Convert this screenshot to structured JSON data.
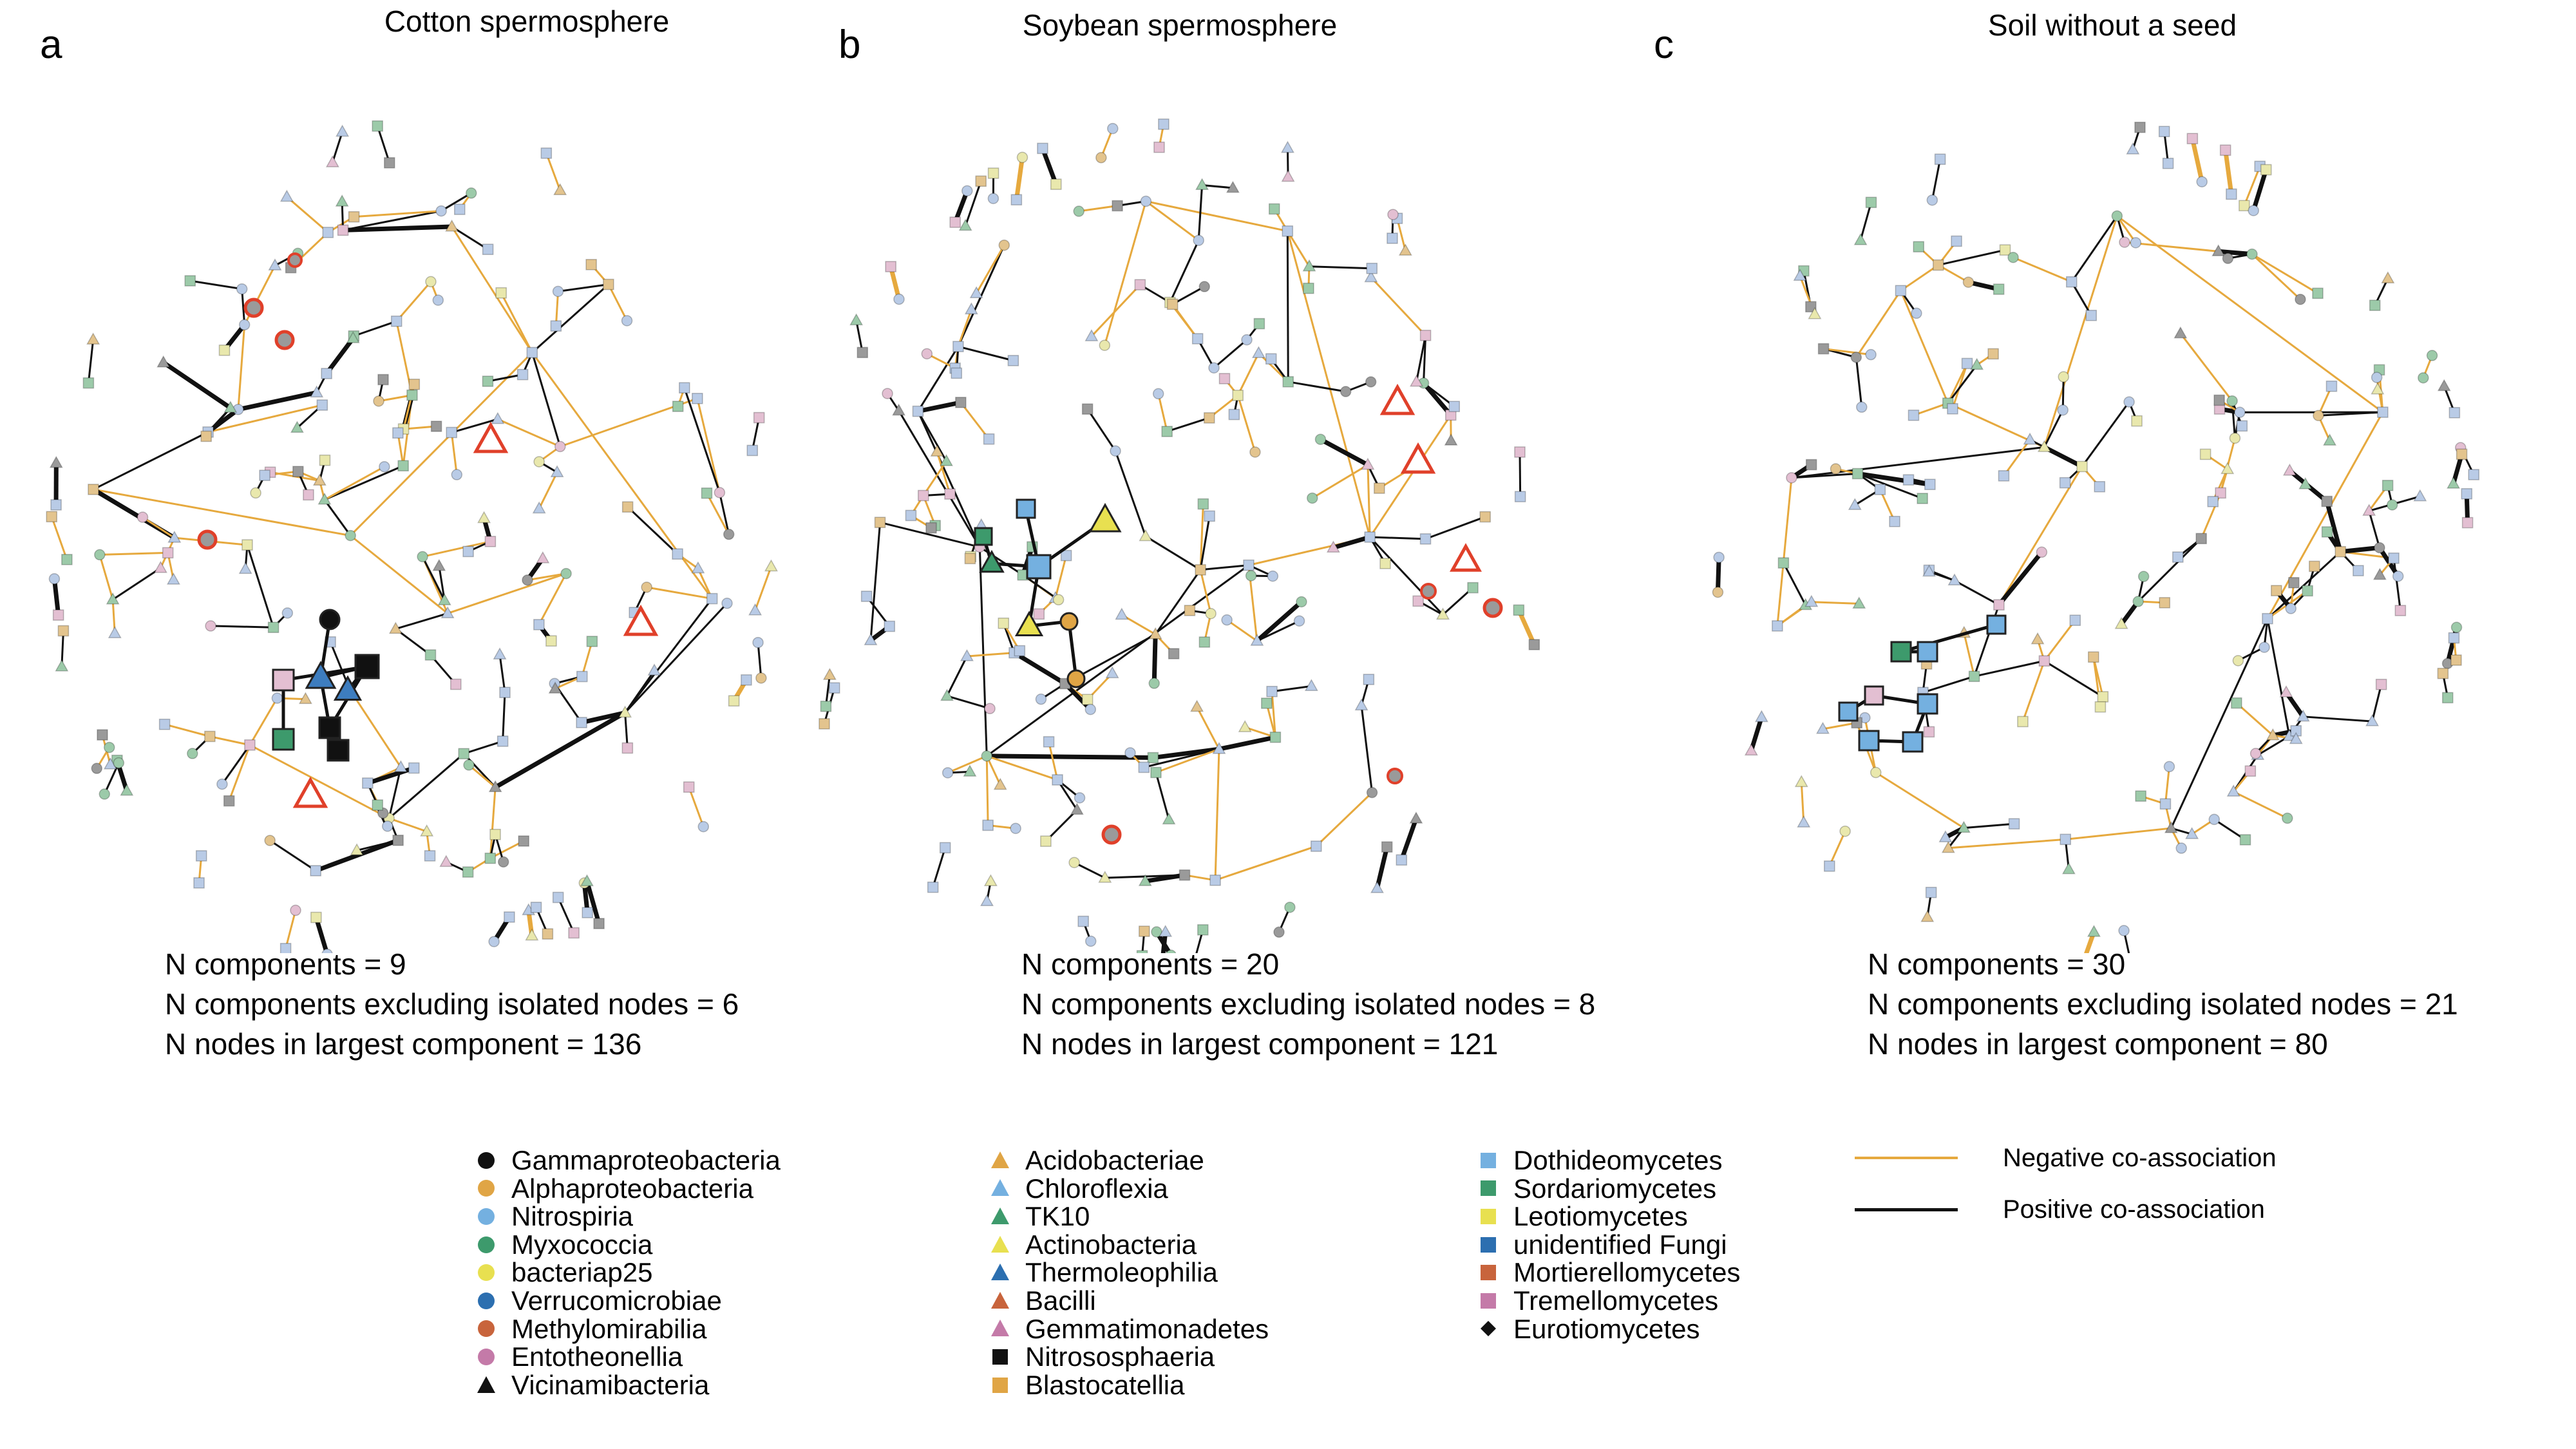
{
  "panels": [
    {
      "letter": "a",
      "title": "Cotton spermosphere",
      "stats": [
        "N components = 9",
        "N components excluding isolated nodes = 6",
        "N nodes in largest component = 136"
      ]
    },
    {
      "letter": "b",
      "title": "Soybean spermosphere",
      "stats": [
        "N components = 20",
        "N components excluding isolated nodes = 8",
        "N nodes in largest component = 121"
      ]
    },
    {
      "letter": "c",
      "title": "Soil without a seed",
      "stats": [
        "N components = 30",
        "N components excluding isolated nodes = 21",
        "N nodes in largest component = 80"
      ]
    }
  ],
  "legend": {
    "column1": [
      {
        "label": "Gammaproteobacteria",
        "shape": "circle",
        "color": "#111111"
      },
      {
        "label": "Alphaproteobacteria",
        "shape": "circle",
        "color": "#e0a545"
      },
      {
        "label": "Nitrospiria",
        "shape": "circle",
        "color": "#74b0e0"
      },
      {
        "label": "Myxococcia",
        "shape": "circle",
        "color": "#3d9a6c"
      },
      {
        "label": "bacteriap25",
        "shape": "circle",
        "color": "#e8e050"
      },
      {
        "label": "Verrucomicrobiae",
        "shape": "circle",
        "color": "#2c6fb0"
      },
      {
        "label": "Methylomirabilia",
        "shape": "circle",
        "color": "#c8643c"
      },
      {
        "label": "Entotheonellia",
        "shape": "circle",
        "color": "#c47aa8"
      },
      {
        "label": "Vicinamibacteria",
        "shape": "triangle",
        "color": "#111111"
      }
    ],
    "column2": [
      {
        "label": "Acidobacteriae",
        "shape": "triangle",
        "color": "#e0a545"
      },
      {
        "label": "Chloroflexia",
        "shape": "triangle",
        "color": "#74b0e0"
      },
      {
        "label": "TK10",
        "shape": "triangle",
        "color": "#3d9a6c"
      },
      {
        "label": "Actinobacteria",
        "shape": "triangle",
        "color": "#e8e050"
      },
      {
        "label": "Thermoleophilia",
        "shape": "triangle",
        "color": "#2c6fb0"
      },
      {
        "label": "Bacilli",
        "shape": "triangle",
        "color": "#c8643c"
      },
      {
        "label": "Gemmatimonadetes",
        "shape": "triangle",
        "color": "#c47aa8"
      },
      {
        "label": "Nitrososphaeria",
        "shape": "square",
        "color": "#111111"
      },
      {
        "label": "Blastocatellia",
        "shape": "square",
        "color": "#e0a545"
      }
    ],
    "column3": [
      {
        "label": "Dothideomycetes",
        "shape": "square",
        "color": "#74b0e0"
      },
      {
        "label": "Sordariomycetes",
        "shape": "square",
        "color": "#3d9a6c"
      },
      {
        "label": "Leotiomycetes",
        "shape": "square",
        "color": "#e8e050"
      },
      {
        "label": "unidentified Fungi",
        "shape": "square",
        "color": "#2c6fb0"
      },
      {
        "label": "Mortierellomycetes",
        "shape": "square",
        "color": "#c8643c"
      },
      {
        "label": "Tremellomycetes",
        "shape": "square",
        "color": "#c47aa8"
      },
      {
        "label": "Eurotiomycetes",
        "shape": "diamond",
        "color": "#111111"
      }
    ],
    "lines": [
      {
        "label": "Negative co-association",
        "color": "#e0a545"
      },
      {
        "label": "Positive co-association",
        "color": "#111111"
      }
    ]
  },
  "colors": {
    "negative_edge": "#e6a93e",
    "positive_edge": "#111111",
    "highlight_red": "#e0402a"
  }
}
